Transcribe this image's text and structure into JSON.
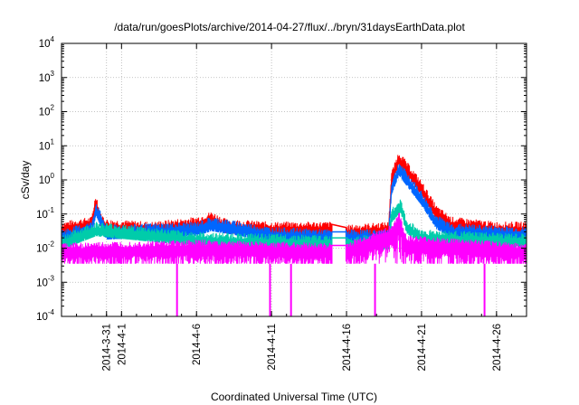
{
  "chart_data": {
    "type": "line",
    "title": "/data/run/goesPlots/archive/2014-04-27/flux/../bryn/31daysEarthData.plot",
    "xlabel": "Coordinated Universal Time (UTC)",
    "ylabel": "cSv/day",
    "yscale": "log",
    "ylim": [
      0.0001,
      10000
    ],
    "xlim": [
      "2014-03-28",
      "2014-04-28"
    ],
    "y_ticks": [
      {
        "base": "10",
        "exp": "-4",
        "value": 0.0001
      },
      {
        "base": "10",
        "exp": "-3",
        "value": 0.001
      },
      {
        "base": "10",
        "exp": "-2",
        "value": 0.01
      },
      {
        "base": "10",
        "exp": "-1",
        "value": 0.1
      },
      {
        "base": "10",
        "exp": "0",
        "value": 1
      },
      {
        "base": "10",
        "exp": "1",
        "value": 10
      },
      {
        "base": "10",
        "exp": "2",
        "value": 100
      },
      {
        "base": "10",
        "exp": "3",
        "value": 1000
      },
      {
        "base": "10",
        "exp": "4",
        "value": 10000
      }
    ],
    "x_ticks": [
      {
        "label": "2014-3-31",
        "date": "2014-03-31"
      },
      {
        "label": "2014-4-1",
        "date": "2014-04-01"
      },
      {
        "label": "2014-4-6",
        "date": "2014-04-06"
      },
      {
        "label": "2014-4-11",
        "date": "2014-04-11"
      },
      {
        "label": "2014-4-16",
        "date": "2014-04-16"
      },
      {
        "label": "2014-4-21",
        "date": "2014-04-21"
      },
      {
        "label": "2014-4-26",
        "date": "2014-04-26"
      }
    ],
    "grid": true,
    "data_gap": [
      "2014-04-15",
      "2014-04-16"
    ],
    "series": [
      {
        "color": "#ff0000",
        "baseline": 0.05,
        "points": [
          [
            "2014-03-28",
            0.05
          ],
          [
            "2014-03-30",
            0.07
          ],
          [
            "2014-03-30.3",
            0.35
          ],
          [
            "2014-03-30.6",
            0.09
          ],
          [
            "2014-03-31",
            0.06
          ],
          [
            "2014-04-03",
            0.05
          ],
          [
            "2014-04-06",
            0.07
          ],
          [
            "2014-04-07",
            0.1
          ],
          [
            "2014-04-08",
            0.06
          ],
          [
            "2014-04-11",
            0.05
          ],
          [
            "2014-04-15",
            0.05
          ],
          [
            "2014-04-16",
            0.04
          ],
          [
            "2014-04-18.8",
            0.05
          ],
          [
            "2014-04-19",
            1.5
          ],
          [
            "2014-04-19.5",
            6
          ],
          [
            "2014-04-20",
            3
          ],
          [
            "2014-04-21",
            0.8
          ],
          [
            "2014-04-22",
            0.15
          ],
          [
            "2014-04-23",
            0.07
          ],
          [
            "2014-04-26",
            0.05
          ],
          [
            "2014-04-28",
            0.05
          ]
        ]
      },
      {
        "color": "#0066ff",
        "baseline": 0.03,
        "points": [
          [
            "2014-03-28",
            0.03
          ],
          [
            "2014-03-30",
            0.05
          ],
          [
            "2014-03-30.3",
            0.2
          ],
          [
            "2014-03-31",
            0.04
          ],
          [
            "2014-04-06",
            0.05
          ],
          [
            "2014-04-07",
            0.07
          ],
          [
            "2014-04-11",
            0.035
          ],
          [
            "2014-04-15",
            0.03
          ],
          [
            "2014-04-16",
            0.03
          ],
          [
            "2014-04-18.8",
            0.03
          ],
          [
            "2014-04-19",
            0.8
          ],
          [
            "2014-04-19.5",
            3
          ],
          [
            "2014-04-20",
            1.5
          ],
          [
            "2014-04-21",
            0.4
          ],
          [
            "2014-04-22",
            0.08
          ],
          [
            "2014-04-23",
            0.045
          ],
          [
            "2014-04-28",
            0.035
          ]
        ]
      },
      {
        "color": "#00ccaa",
        "baseline": 0.02,
        "points": [
          [
            "2014-03-28",
            0.02
          ],
          [
            "2014-03-30.3",
            0.05
          ],
          [
            "2014-04-06",
            0.025
          ],
          [
            "2014-04-15",
            0.02
          ],
          [
            "2014-04-16",
            0.02
          ],
          [
            "2014-04-18.8",
            0.02
          ],
          [
            "2014-04-19",
            0.12
          ],
          [
            "2014-04-19.6",
            0.25
          ],
          [
            "2014-04-20",
            0.06
          ],
          [
            "2014-04-21",
            0.03
          ],
          [
            "2014-04-28",
            0.022
          ]
        ]
      },
      {
        "color": "#ff00ff",
        "baseline": 0.01,
        "points": [
          [
            "2014-03-28",
            0.012
          ],
          [
            "2014-04-06",
            0.015
          ],
          [
            "2014-04-15",
            0.012
          ],
          [
            "2014-04-16",
            0.012
          ],
          [
            "2014-04-19",
            0.04
          ],
          [
            "2014-04-19.5",
            0.1
          ],
          [
            "2014-04-20",
            0.02
          ],
          [
            "2014-04-28",
            0.012
          ]
        ],
        "floor": 0.0035,
        "dropouts": [
          "2014-04-04.7",
          "2014-04-10.9",
          "2014-04-12.3",
          "2014-04-17.9",
          "2014-04-25.2"
        ]
      }
    ]
  }
}
